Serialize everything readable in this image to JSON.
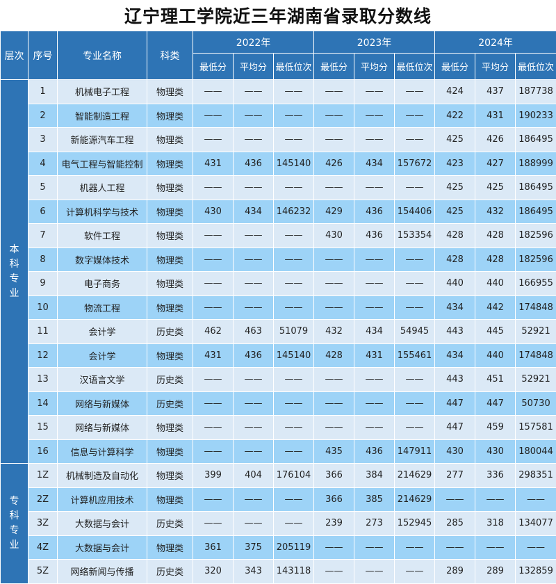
{
  "title": "辽宁理工学院近三年湖南省录取分数线",
  "headers": {
    "level": "层次",
    "seq": "序号",
    "major": "专业名称",
    "subject": "科类",
    "years": [
      "2022年",
      "2023年",
      "2024年"
    ],
    "min_score": "最低分",
    "avg_score": "平均分",
    "min_rank": "最低位次"
  },
  "groups": [
    {
      "level_chars": [
        "本",
        "科",
        "专",
        "业"
      ],
      "rows": [
        {
          "seq": "1",
          "major": "机械电子工程",
          "subject": "物理类",
          "y2022": [
            "——",
            "——",
            "——"
          ],
          "y2023": [
            "——",
            "——",
            "——"
          ],
          "y2024": [
            "424",
            "437",
            "187738"
          ]
        },
        {
          "seq": "2",
          "major": "智能制造工程",
          "subject": "物理类",
          "y2022": [
            "——",
            "——",
            "——"
          ],
          "y2023": [
            "——",
            "——",
            "——"
          ],
          "y2024": [
            "422",
            "431",
            "190233"
          ]
        },
        {
          "seq": "3",
          "major": "新能源汽车工程",
          "subject": "物理类",
          "y2022": [
            "——",
            "——",
            "——"
          ],
          "y2023": [
            "——",
            "——",
            "——"
          ],
          "y2024": [
            "425",
            "426",
            "186495"
          ]
        },
        {
          "seq": "4",
          "major": "电气工程与智能控制",
          "subject": "物理类",
          "y2022": [
            "431",
            "436",
            "145140"
          ],
          "y2023": [
            "426",
            "434",
            "157672"
          ],
          "y2024": [
            "423",
            "427",
            "188999"
          ]
        },
        {
          "seq": "5",
          "major": "机器人工程",
          "subject": "物理类",
          "y2022": [
            "——",
            "——",
            "——"
          ],
          "y2023": [
            "——",
            "——",
            "——"
          ],
          "y2024": [
            "425",
            "425",
            "186495"
          ]
        },
        {
          "seq": "6",
          "major": "计算机科学与技术",
          "subject": "物理类",
          "y2022": [
            "430",
            "434",
            "146232"
          ],
          "y2023": [
            "429",
            "436",
            "154406"
          ],
          "y2024": [
            "425",
            "432",
            "186495"
          ]
        },
        {
          "seq": "7",
          "major": "软件工程",
          "subject": "物理类",
          "y2022": [
            "——",
            "——",
            "——"
          ],
          "y2023": [
            "430",
            "436",
            "153354"
          ],
          "y2024": [
            "428",
            "428",
            "182596"
          ]
        },
        {
          "seq": "8",
          "major": "数字媒体技术",
          "subject": "物理类",
          "y2022": [
            "——",
            "——",
            "——"
          ],
          "y2023": [
            "——",
            "——",
            "——"
          ],
          "y2024": [
            "428",
            "428",
            "182596"
          ]
        },
        {
          "seq": "9",
          "major": "电子商务",
          "subject": "物理类",
          "y2022": [
            "——",
            "——",
            "——"
          ],
          "y2023": [
            "——",
            "——",
            "——"
          ],
          "y2024": [
            "440",
            "440",
            "166955"
          ]
        },
        {
          "seq": "10",
          "major": "物流工程",
          "subject": "物理类",
          "y2022": [
            "——",
            "——",
            "——"
          ],
          "y2023": [
            "——",
            "——",
            "——"
          ],
          "y2024": [
            "434",
            "442",
            "174848"
          ]
        },
        {
          "seq": "11",
          "major": "会计学",
          "subject": "历史类",
          "y2022": [
            "462",
            "463",
            "51079"
          ],
          "y2023": [
            "432",
            "434",
            "54945"
          ],
          "y2024": [
            "443",
            "445",
            "52921"
          ]
        },
        {
          "seq": "12",
          "major": "会计学",
          "subject": "物理类",
          "y2022": [
            "431",
            "436",
            "145140"
          ],
          "y2023": [
            "428",
            "431",
            "155461"
          ],
          "y2024": [
            "434",
            "440",
            "174848"
          ]
        },
        {
          "seq": "13",
          "major": "汉语言文学",
          "subject": "历史类",
          "y2022": [
            "——",
            "——",
            "——"
          ],
          "y2023": [
            "——",
            "——",
            "——"
          ],
          "y2024": [
            "443",
            "451",
            "52921"
          ]
        },
        {
          "seq": "14",
          "major": "网络与新媒体",
          "subject": "历史类",
          "y2022": [
            "——",
            "——",
            "——"
          ],
          "y2023": [
            "——",
            "——",
            "——"
          ],
          "y2024": [
            "447",
            "447",
            "50730"
          ]
        },
        {
          "seq": "15",
          "major": "网络与新媒体",
          "subject": "物理类",
          "y2022": [
            "——",
            "——",
            "——"
          ],
          "y2023": [
            "——",
            "——",
            "——"
          ],
          "y2024": [
            "447",
            "459",
            "157581"
          ]
        },
        {
          "seq": "16",
          "major": "信息与计算科学",
          "subject": "物理类",
          "y2022": [
            "——",
            "——",
            "——"
          ],
          "y2023": [
            "435",
            "436",
            "147911"
          ],
          "y2024": [
            "430",
            "430",
            "180044"
          ]
        }
      ]
    },
    {
      "level_chars": [
        "专",
        "科",
        "专",
        "业"
      ],
      "rows": [
        {
          "seq": "1Z",
          "major": "机械制造及自动化",
          "subject": "物理类",
          "y2022": [
            "399",
            "404",
            "176104"
          ],
          "y2023": [
            "366",
            "384",
            "214629"
          ],
          "y2024": [
            "277",
            "336",
            "298351"
          ]
        },
        {
          "seq": "2Z",
          "major": "计算机应用技术",
          "subject": "物理类",
          "y2022": [
            "——",
            "——",
            "——"
          ],
          "y2023": [
            "366",
            "385",
            "214629"
          ],
          "y2024": [
            "——",
            "——",
            "——"
          ]
        },
        {
          "seq": "3Z",
          "major": "大数据与会计",
          "subject": "历史类",
          "y2022": [
            "——",
            "——",
            "——"
          ],
          "y2023": [
            "239",
            "273",
            "152945"
          ],
          "y2024": [
            "285",
            "318",
            "134077"
          ]
        },
        {
          "seq": "4Z",
          "major": "大数据与会计",
          "subject": "物理类",
          "y2022": [
            "361",
            "375",
            "205119"
          ],
          "y2023": [
            "——",
            "——",
            "——"
          ],
          "y2024": [
            "——",
            "——",
            "——"
          ]
        },
        {
          "seq": "5Z",
          "major": "网络新闻与传播",
          "subject": "历史类",
          "y2022": [
            "320",
            "343",
            "143118"
          ],
          "y2023": [
            "——",
            "——",
            "——"
          ],
          "y2024": [
            "289",
            "289",
            "132859"
          ]
        }
      ]
    }
  ]
}
